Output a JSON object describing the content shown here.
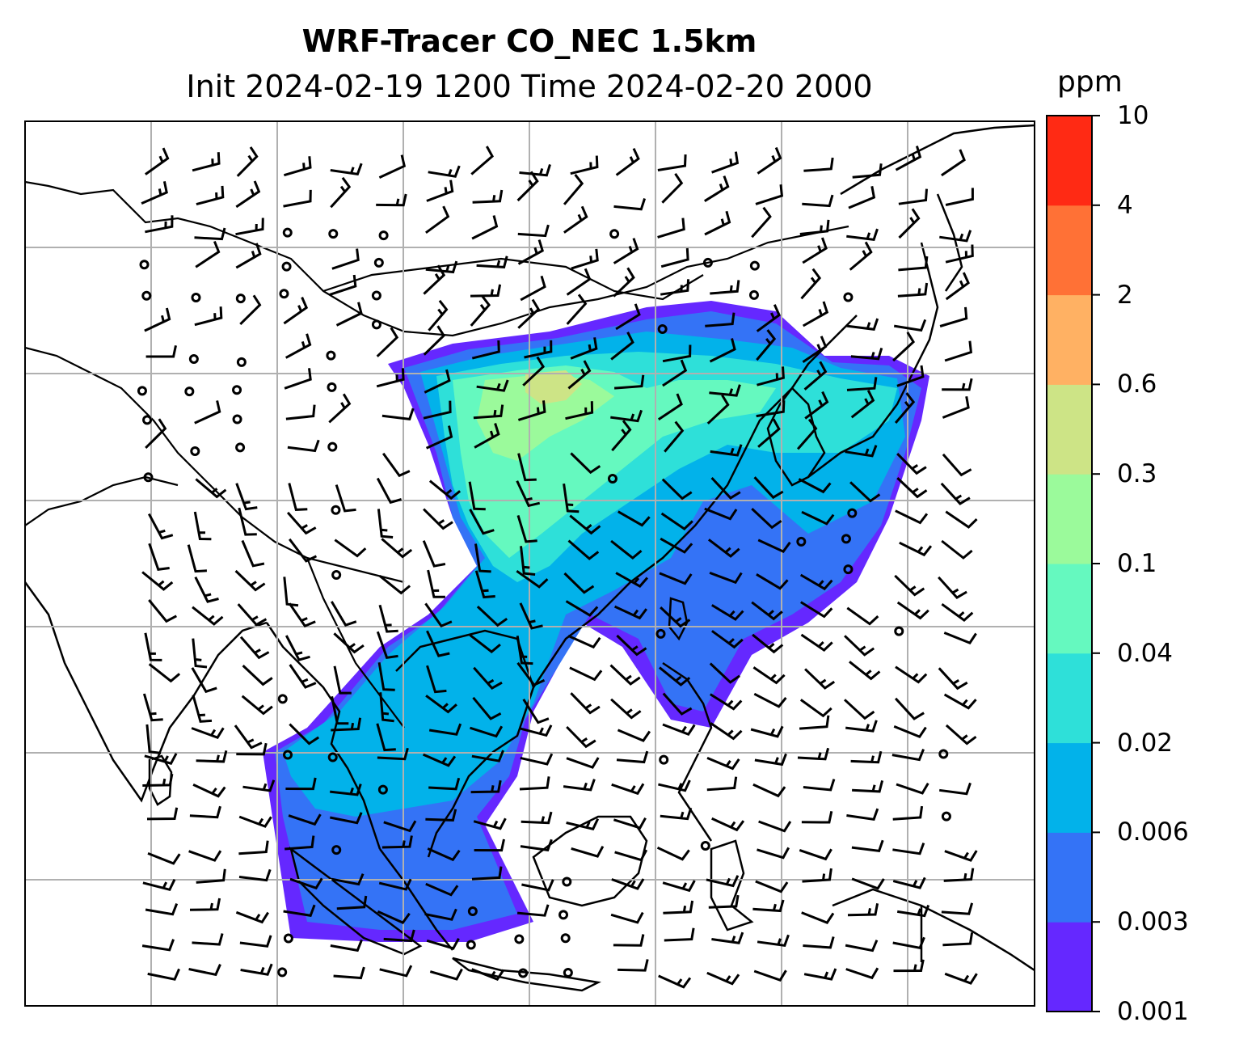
{
  "title_line1": "WRF-Tracer CO_NEC 1.5km",
  "title_line2": "Init 2024-02-19 1200 Time 2024-02-20 2000",
  "colorbar": {
    "unit": "ppm",
    "ticks": [
      "0.001",
      "0.003",
      "0.006",
      "0.02",
      "0.04",
      "0.1",
      "0.3",
      "0.6",
      "2",
      "4",
      "10"
    ],
    "colors": [
      "#6528ff",
      "#3473f6",
      "#02b2ea",
      "#2ee0d9",
      "#65f9bf",
      "#9bfa9b",
      "#cde486",
      "#ffb163",
      "#ff7136",
      "#ff2a14"
    ]
  },
  "map": {
    "gridlines": true,
    "coastline_color": "#000000",
    "features": [
      "coastlines",
      "country-borders",
      "gridlines",
      "wind-barbs",
      "tracer-concentration"
    ]
  }
}
